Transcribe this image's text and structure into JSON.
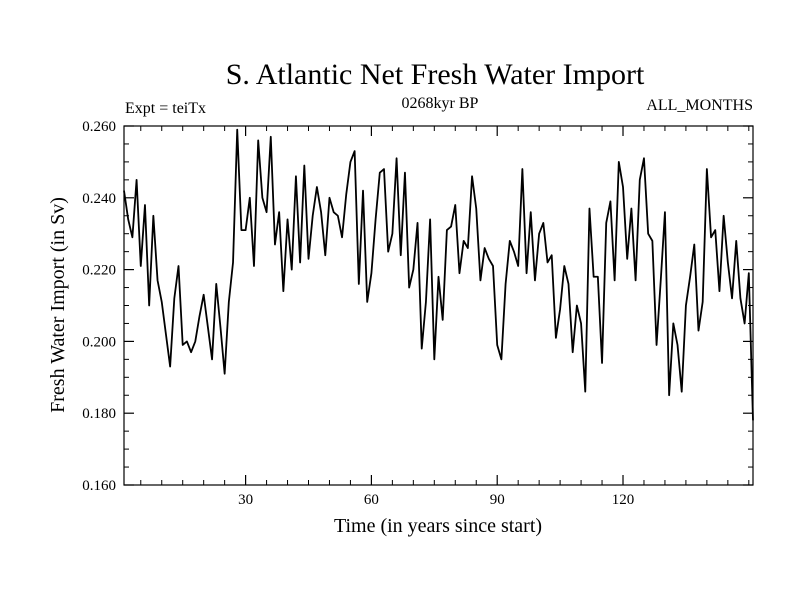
{
  "chart_data": {
    "type": "line",
    "title": "S. Atlantic Net Fresh Water Import",
    "subtitle": "0268kyr BP",
    "expt_label": "Expt = teiTx",
    "months_label": "ALL_MONTHS",
    "xlabel": "Time (in years since start)",
    "ylabel": "Fresh Water Import (in Sv)",
    "xlim": [
      1,
      151
    ],
    "ylim": [
      0.16,
      0.26
    ],
    "x_ticks": [
      30,
      60,
      90,
      120
    ],
    "x_tick_labels": [
      "30",
      "60",
      "90",
      "120"
    ],
    "y_ticks": [
      0.16,
      0.18,
      0.2,
      0.22,
      0.24,
      0.26
    ],
    "y_tick_labels": [
      "0.160",
      "0.180",
      "0.200",
      "0.220",
      "0.240",
      "0.260"
    ],
    "series": [
      {
        "name": "Fresh Water Import",
        "x_start": 1,
        "x_step": 1,
        "values": [
          0.242,
          0.234,
          0.229,
          0.245,
          0.221,
          0.238,
          0.21,
          0.235,
          0.217,
          0.211,
          0.202,
          0.193,
          0.212,
          0.221,
          0.199,
          0.2,
          0.197,
          0.2,
          0.207,
          0.213,
          0.204,
          0.195,
          0.216,
          0.204,
          0.191,
          0.211,
          0.222,
          0.259,
          0.231,
          0.231,
          0.24,
          0.221,
          0.256,
          0.24,
          0.236,
          0.257,
          0.227,
          0.236,
          0.214,
          0.234,
          0.22,
          0.246,
          0.222,
          0.249,
          0.223,
          0.235,
          0.243,
          0.236,
          0.224,
          0.24,
          0.236,
          0.235,
          0.229,
          0.241,
          0.25,
          0.253,
          0.216,
          0.242,
          0.211,
          0.219,
          0.234,
          0.247,
          0.248,
          0.225,
          0.23,
          0.251,
          0.224,
          0.247,
          0.215,
          0.22,
          0.233,
          0.198,
          0.211,
          0.234,
          0.195,
          0.218,
          0.206,
          0.231,
          0.232,
          0.238,
          0.219,
          0.228,
          0.226,
          0.246,
          0.237,
          0.217,
          0.226,
          0.223,
          0.221,
          0.199,
          0.195,
          0.216,
          0.228,
          0.225,
          0.221,
          0.248,
          0.219,
          0.236,
          0.217,
          0.23,
          0.233,
          0.222,
          0.224,
          0.201,
          0.209,
          0.221,
          0.216,
          0.197,
          0.21,
          0.205,
          0.186,
          0.237,
          0.218,
          0.218,
          0.194,
          0.233,
          0.239,
          0.217,
          0.25,
          0.243,
          0.223,
          0.237,
          0.217,
          0.245,
          0.251,
          0.23,
          0.228,
          0.199,
          0.217,
          0.236,
          0.185,
          0.205,
          0.199,
          0.186,
          0.21,
          0.218,
          0.227,
          0.203,
          0.211,
          0.248,
          0.229,
          0.231,
          0.214,
          0.235,
          0.222,
          0.212,
          0.228,
          0.212,
          0.205,
          0.219,
          0.178
        ]
      }
    ],
    "grid": false
  },
  "style": {
    "line_color": "#000000",
    "axis_color": "#000000"
  }
}
